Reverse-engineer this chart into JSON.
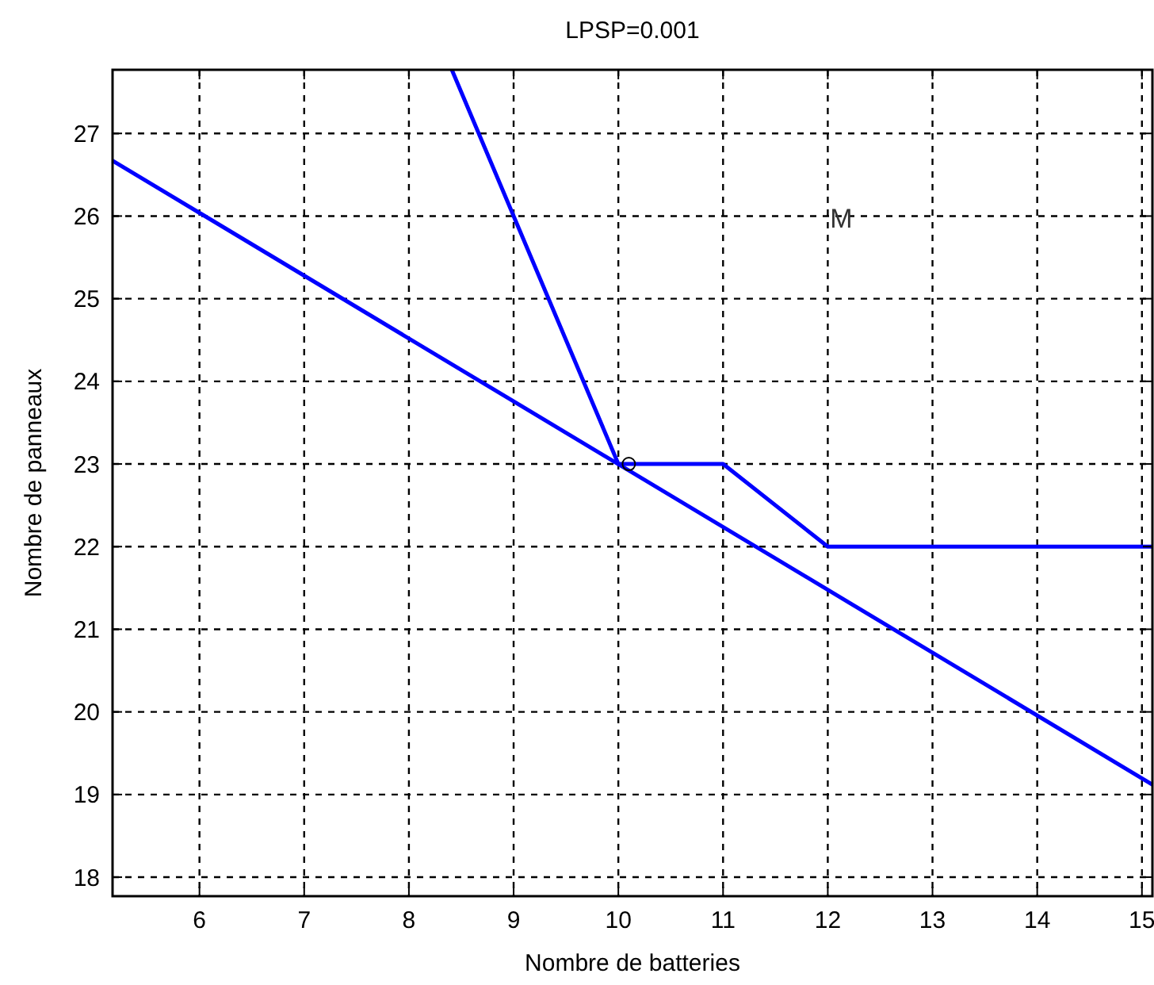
{
  "chart_data": {
    "type": "line",
    "title": "LPSP=0.001",
    "xlabel": "Nombre de batteries",
    "ylabel": "Nombre de panneaux",
    "series": [
      {
        "color": "#0000ff",
        "x": [
          5.17,
          15.1
        ],
        "values": [
          26.67,
          19.12
        ]
      },
      {
        "color": "#0000ff",
        "x": [
          8.41,
          10,
          11,
          12,
          15.1
        ],
        "values": [
          27.77,
          23,
          23,
          22,
          22
        ]
      },
      {
        "type": "scatter",
        "color": "#000000",
        "marker": "circle",
        "x": [
          10.1
        ],
        "values": [
          23
        ]
      }
    ],
    "annotations": [
      "M"
    ],
    "xlim": [
      5.17,
      15.1
    ],
    "ylim": [
      17.77,
      27.77
    ],
    "xticks": [
      6,
      7,
      8,
      9,
      10,
      11,
      12,
      13,
      14,
      15
    ],
    "yticks": [
      18,
      19,
      20,
      21,
      22,
      23,
      24,
      25,
      26,
      27
    ],
    "grid": true,
    "marker": "none",
    "line_style": "solid"
  }
}
